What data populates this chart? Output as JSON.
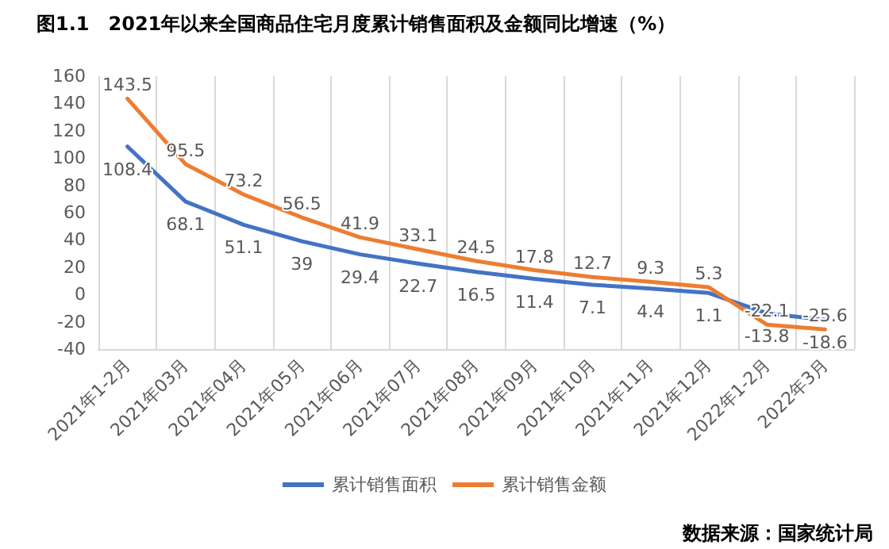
{
  "chart_data": {
    "type": "line",
    "title": "图1.1　2021年以来全国商品住宅月度累计销售面积及金额同比增速（%）",
    "categories": [
      "2021年1-2月",
      "2021年03月",
      "2021年04月",
      "2021年05月",
      "2021年06月",
      "2021年07月",
      "2021年08月",
      "2021年09月",
      "2021年10月",
      "2021年11月",
      "2021年12月",
      "2022年1-2月",
      "2022年3月"
    ],
    "series": [
      {
        "name": "累计销售面积",
        "color": "#4472c4",
        "values": [
          108.4,
          68.1,
          51.1,
          39,
          29.4,
          22.7,
          16.5,
          11.4,
          7.1,
          4.4,
          1.1,
          -13.8,
          -18.6
        ]
      },
      {
        "name": "累计销售金额",
        "color": "#ed7d31",
        "values": [
          143.5,
          95.5,
          73.2,
          56.5,
          41.9,
          33.1,
          24.5,
          17.8,
          12.7,
          9.3,
          5.3,
          -22.1,
          -25.6
        ]
      }
    ],
    "ylim": [
      -40,
      160
    ],
    "yticks": [
      -40,
      -20,
      0,
      20,
      40,
      60,
      80,
      100,
      120,
      140,
      160
    ],
    "grid": "x",
    "legend": "bottom",
    "data_labels": true,
    "marker": "none",
    "line_style": "solid",
    "annotations": [
      "数据来源：国家统计局"
    ]
  }
}
